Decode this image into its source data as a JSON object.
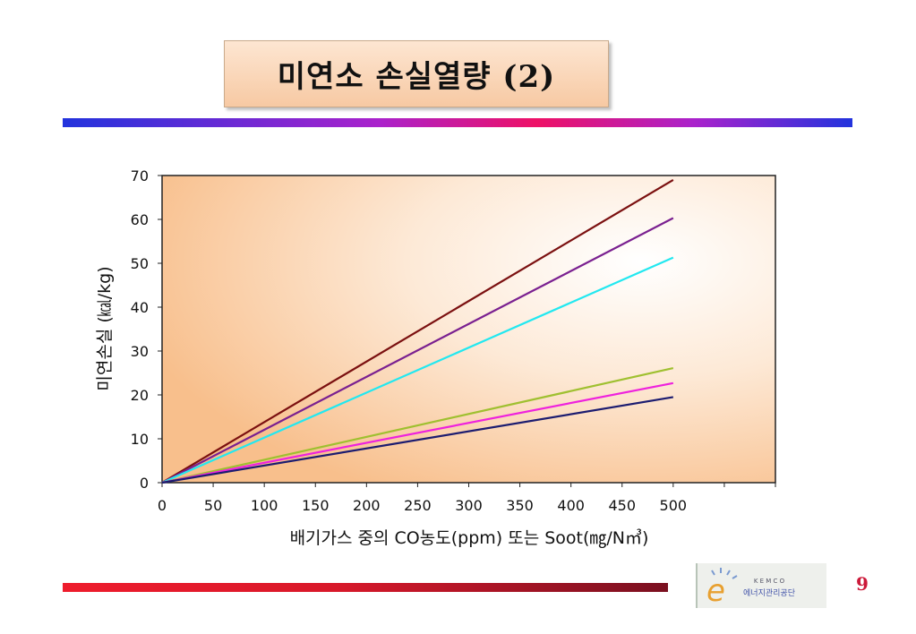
{
  "slide": {
    "title": "미연소 손실열량 (2)",
    "page_number": "9",
    "logo_text_top": "K E M C O",
    "logo_text_bottom": "에너지관리공단",
    "logo_letter": "e"
  },
  "chart_data": {
    "type": "line",
    "title": "",
    "xlabel": "배기가스 중의 CO농도(ppm) 또는 Soot(㎎/N㎥)",
    "ylabel": "미연손실 (㎉/kg)",
    "xlim": [
      0,
      600
    ],
    "ylim": [
      0,
      70
    ],
    "x_ticks": [
      0,
      50,
      100,
      150,
      200,
      250,
      300,
      350,
      400,
      450,
      500
    ],
    "y_ticks": [
      0,
      10,
      20,
      30,
      40,
      50,
      60,
      70
    ],
    "grid": false,
    "legend": "none",
    "series": [
      {
        "color": "#7b1010",
        "x": [
          0,
          500
        ],
        "y": [
          0,
          69
        ]
      },
      {
        "color": "#7a2090",
        "x": [
          0,
          500
        ],
        "y": [
          0,
          60.3
        ]
      },
      {
        "color": "#22e8f0",
        "x": [
          0,
          500
        ],
        "y": [
          0,
          51.3
        ]
      },
      {
        "color": "#9fc030",
        "x": [
          0,
          500
        ],
        "y": [
          0,
          26.1
        ]
      },
      {
        "color": "#ee22dd",
        "x": [
          0,
          500
        ],
        "y": [
          0,
          22.7
        ]
      },
      {
        "color": "#1c1c70",
        "x": [
          0,
          500
        ],
        "y": [
          0,
          19.5
        ]
      }
    ]
  }
}
